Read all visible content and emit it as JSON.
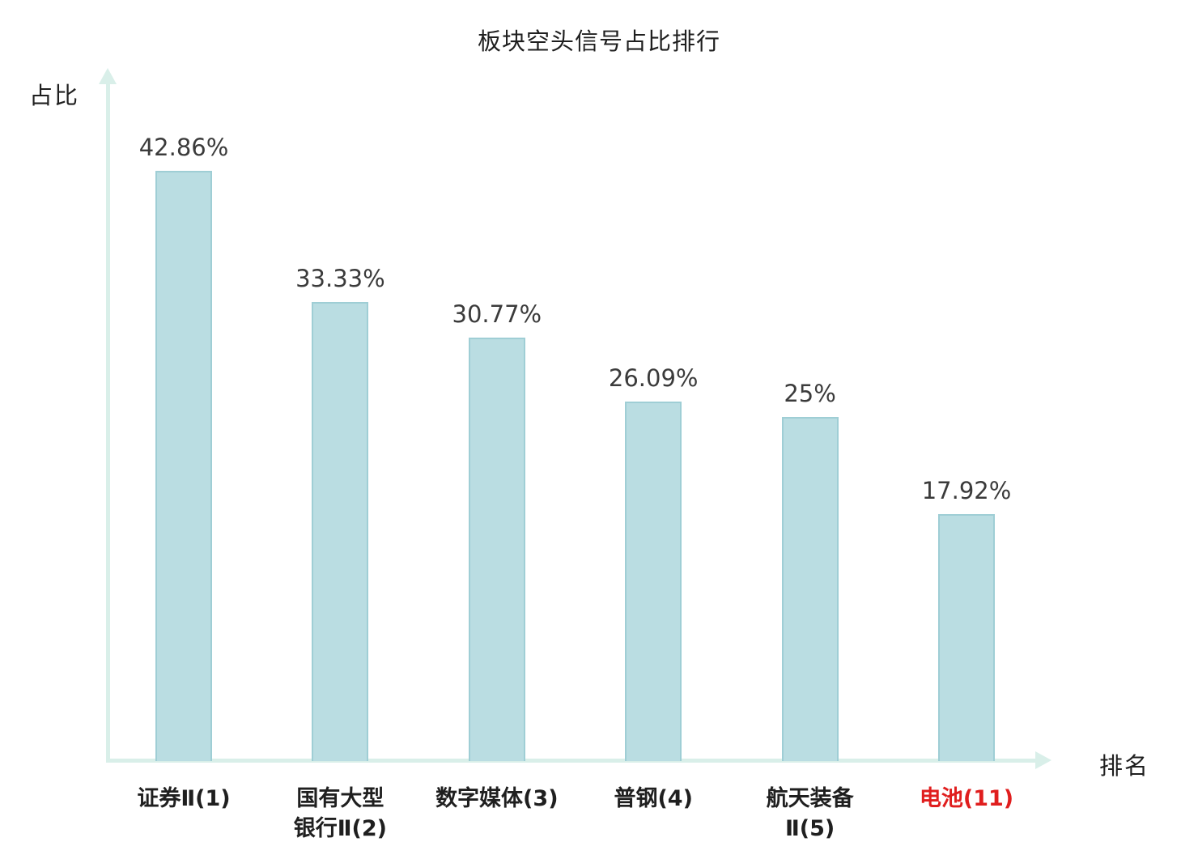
{
  "chart_data": {
    "type": "bar",
    "title": "板块空头信号占比排行",
    "xlabel": "排名",
    "ylabel": "占比",
    "categories": [
      "证券Ⅱ(1)",
      "国有大型\n银行Ⅱ(2)",
      "数字媒体(3)",
      "普钢(4)",
      "航天装备\nⅡ(5)",
      "电池(11)"
    ],
    "values": [
      42.86,
      33.33,
      30.77,
      26.09,
      25,
      17.92
    ],
    "value_labels": [
      "42.86%",
      "33.33%",
      "30.77%",
      "26.09%",
      "25%",
      "17.92%"
    ],
    "category_colors": [
      "#1f1f1f",
      "#1f1f1f",
      "#1f1f1f",
      "#1f1f1f",
      "#1f1f1f",
      "#e01e1e"
    ],
    "bar_fill": "#badde2",
    "bar_border": "#9fced5",
    "axis_color": "#d9efe9",
    "ylim": [
      0,
      49.3
    ],
    "grid": false,
    "legend": "none"
  }
}
